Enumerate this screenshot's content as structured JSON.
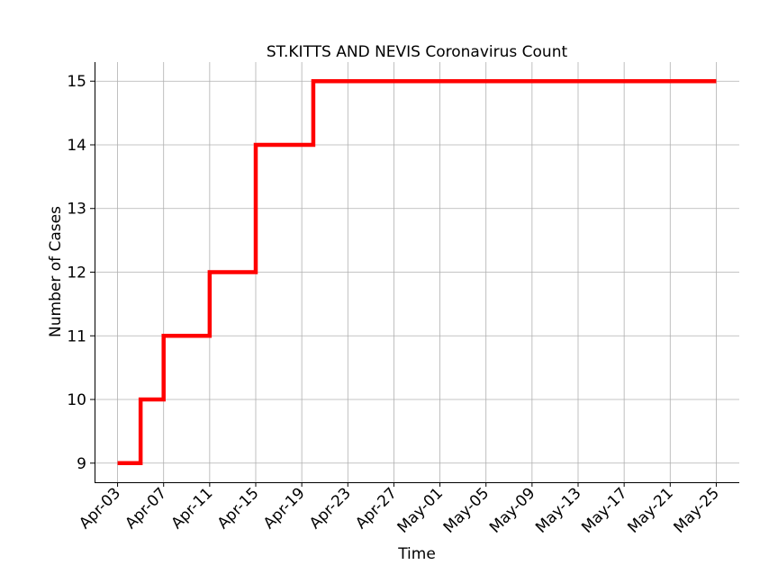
{
  "chart_data": {
    "type": "line",
    "step": "post",
    "title": "ST.KITTS AND NEVIS Coronavirus Count",
    "xlabel": "Time",
    "ylabel": "Number of Cases",
    "color": "#ff0000",
    "grid": true,
    "xlim": [
      "2020-04-01",
      "2020-05-27"
    ],
    "ylim": [
      8.7,
      15.3
    ],
    "x_ticks": [
      "2020-04-03",
      "2020-04-07",
      "2020-04-11",
      "2020-04-15",
      "2020-04-19",
      "2020-04-23",
      "2020-04-27",
      "2020-05-01",
      "2020-05-05",
      "2020-05-09",
      "2020-05-13",
      "2020-05-17",
      "2020-05-21",
      "2020-05-25"
    ],
    "x_tick_labels": [
      "Apr-03",
      "Apr-07",
      "Apr-11",
      "Apr-15",
      "Apr-19",
      "Apr-23",
      "Apr-27",
      "May-01",
      "May-05",
      "May-09",
      "May-13",
      "May-17",
      "May-21",
      "May-25"
    ],
    "y_ticks": [
      9,
      10,
      11,
      12,
      13,
      14,
      15
    ],
    "series": [
      {
        "x": [
          "2020-04-03",
          "2020-04-05",
          "2020-04-07",
          "2020-04-11",
          "2020-04-15",
          "2020-04-20",
          "2020-05-25"
        ],
        "y": [
          9,
          10,
          11,
          12,
          14,
          15,
          15
        ]
      }
    ]
  }
}
